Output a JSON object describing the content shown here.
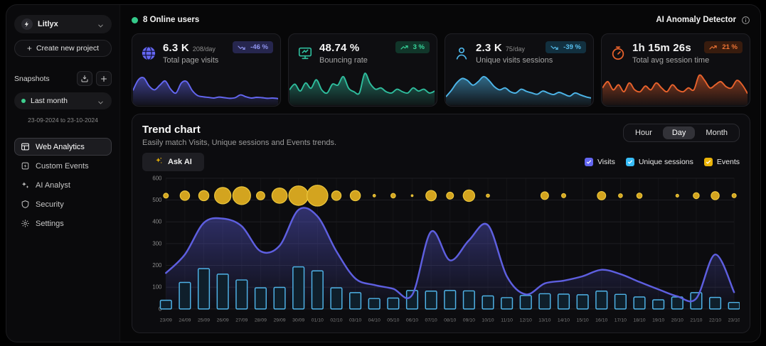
{
  "sidebar": {
    "project_name": "Litlyx",
    "create_project": "Create new project",
    "snapshots_label": "Snapshots",
    "snapshot_selected": "Last month",
    "snapshot_range": "23-09-2024 to 23-10-2024",
    "nav": [
      {
        "label": "Web Analytics",
        "icon": "web-analytics-icon",
        "active": true
      },
      {
        "label": "Custom Events",
        "icon": "custom-events-icon",
        "active": false
      },
      {
        "label": "AI Analyst",
        "icon": "ai-analyst-icon",
        "active": false
      },
      {
        "label": "Security",
        "icon": "security-icon",
        "active": false
      },
      {
        "label": "Settings",
        "icon": "settings-icon",
        "active": false
      }
    ]
  },
  "topbar": {
    "online_users": "8 Online users",
    "anomaly_detector": "AI Anomaly Detector"
  },
  "stat_cards": [
    {
      "value": "6.3 K",
      "per_day": "208/day",
      "label": "Total page visits",
      "badge": "-46 %",
      "trend": "down",
      "icon": "globe-icon",
      "color": "#6467f2",
      "badge_bg": "#26264e",
      "badge_fg": "#9095f0",
      "spark": [
        38,
        72,
        78,
        52,
        40,
        55,
        68,
        42,
        30,
        62,
        66,
        38,
        22,
        18,
        16,
        14,
        17,
        15,
        13,
        15,
        24,
        18,
        14,
        16,
        15,
        13,
        14,
        12
      ]
    },
    {
      "value": "48.74 %",
      "per_day": "",
      "label": "Bouncing rate",
      "badge": "3 %",
      "trend": "up",
      "icon": "bounce-icon",
      "color": "#2fbd9d",
      "badge_bg": "#11362a",
      "badge_fg": "#37d89c",
      "spark": [
        40,
        58,
        36,
        62,
        45,
        72,
        40,
        30,
        58,
        55,
        82,
        45,
        34,
        30,
        92,
        60,
        42,
        46,
        34,
        30,
        42,
        34,
        30,
        46,
        36,
        42,
        30,
        36
      ]
    },
    {
      "value": "2.3 K",
      "per_day": "75/day",
      "label": "Unique visits sessions",
      "badge": "-39 %",
      "trend": "down",
      "icon": "person-icon",
      "color": "#4db5e8",
      "badge_bg": "#12303f",
      "badge_fg": "#58c0ef",
      "spark": [
        18,
        38,
        62,
        76,
        70,
        55,
        66,
        82,
        70,
        50,
        40,
        46,
        34,
        30,
        42,
        35,
        30,
        26,
        36,
        30,
        25,
        32,
        26,
        20,
        30,
        24,
        18,
        14
      ]
    },
    {
      "value": "1h 15m 26s",
      "per_day": "",
      "label": "Total avg session time",
      "badge": "21 %",
      "trend": "up",
      "icon": "timer-icon",
      "color": "#e8622c",
      "badge_bg": "#381c0e",
      "badge_fg": "#ef7434",
      "spark": [
        46,
        66,
        40,
        56,
        34,
        62,
        40,
        34,
        52,
        40,
        62,
        46,
        34,
        56,
        40,
        34,
        46,
        40,
        86,
        70,
        46,
        56,
        66,
        50,
        46,
        70,
        56,
        28
      ]
    }
  ],
  "trend": {
    "title": "Trend chart",
    "subtitle": "Easily match Visits, Unique sessions and Events trends.",
    "ask_ai_label": "Ask AI",
    "range_tabs": [
      "Hour",
      "Day",
      "Month"
    ],
    "active_tab": "Day",
    "legend": [
      {
        "label": "Visits",
        "color": "#6366f1"
      },
      {
        "label": "Unique sessions",
        "color": "#38bdf8"
      },
      {
        "label": "Events",
        "color": "#eab308"
      }
    ]
  },
  "chart_data": {
    "type": "line",
    "title": "Trend chart",
    "x": [
      "23/09",
      "24/09",
      "25/09",
      "26/09",
      "27/09",
      "28/09",
      "29/09",
      "30/09",
      "01/10",
      "02/10",
      "03/10",
      "04/10",
      "05/10",
      "06/10",
      "07/10",
      "08/10",
      "09/10",
      "10/10",
      "11/10",
      "12/10",
      "13/10",
      "14/10",
      "15/10",
      "16/10",
      "17/10",
      "18/10",
      "19/10",
      "20/10",
      "21/10",
      "22/10",
      "23/10"
    ],
    "ylim": [
      0,
      600
    ],
    "yticks": [
      0,
      100,
      200,
      300,
      400,
      500,
      600
    ],
    "grid": true,
    "legend_position": "top-right",
    "series": [
      {
        "name": "Visits",
        "render": "area-line",
        "color": "#5e5fe0",
        "values": [
          165,
          250,
          395,
          415,
          380,
          265,
          290,
          455,
          425,
          265,
          140,
          110,
          93,
          64,
          355,
          223,
          315,
          385,
          150,
          67,
          117,
          130,
          150,
          180,
          160,
          124,
          90,
          58,
          48,
          250,
          77
        ]
      },
      {
        "name": "Unique sessions",
        "render": "bar",
        "color": "#4fb3e8",
        "values": [
          40,
          122,
          185,
          160,
          133,
          97,
          99,
          193,
          175,
          97,
          75,
          48,
          50,
          85,
          82,
          85,
          83,
          60,
          52,
          62,
          70,
          68,
          65,
          82,
          67,
          55,
          42,
          55,
          75,
          53,
          30
        ]
      },
      {
        "name": "Events",
        "render": "bubble",
        "color": "#d3a41f",
        "bubble_y": 520,
        "values": [
          14,
          27,
          29,
          47,
          51,
          24,
          44,
          56,
          60,
          27,
          29,
          7,
          13,
          5,
          30,
          20,
          33,
          9,
          0,
          0,
          22,
          12,
          0,
          24,
          11,
          15,
          0,
          8,
          17,
          23,
          12
        ]
      }
    ]
  }
}
